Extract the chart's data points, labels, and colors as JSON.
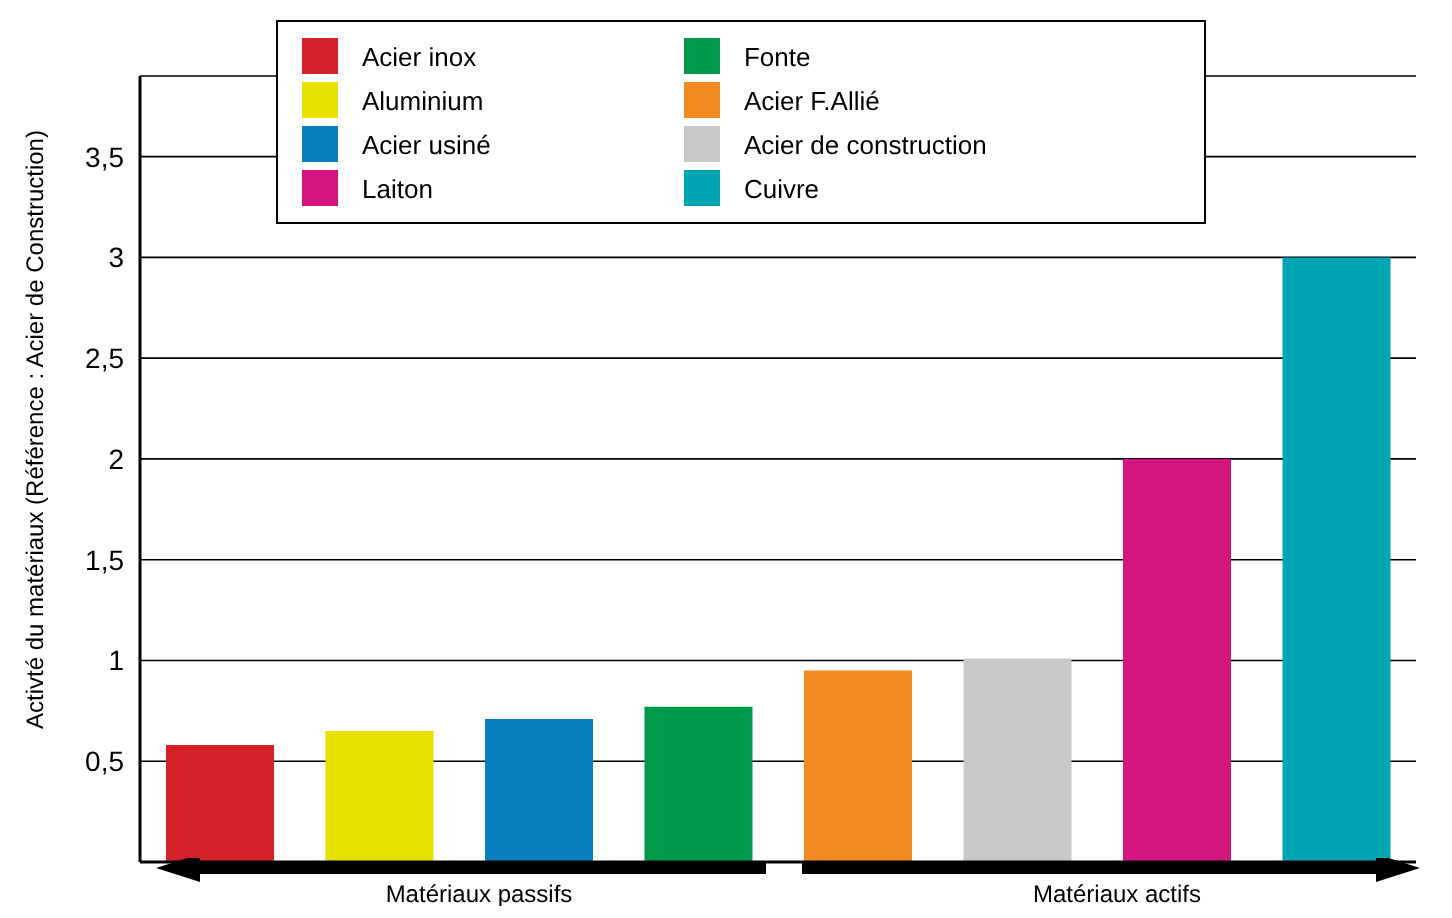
{
  "chart_data": {
    "type": "bar",
    "ylabel": "Activté du matériaux (Référence : Acier de Construction)",
    "categories": [
      null,
      null,
      null,
      null,
      null,
      null,
      null,
      null
    ],
    "series": [
      {
        "name": "Acier inox",
        "color": "#d42027",
        "values": [
          0.58,
          null,
          null,
          null,
          null,
          null,
          null,
          null
        ]
      },
      {
        "name": "Aluminium",
        "color": "#e8e000",
        "values": [
          null,
          0.65,
          null,
          null,
          null,
          null,
          null,
          null
        ]
      },
      {
        "name": "Acier usiné",
        "color": "#0a7fc0",
        "values": [
          null,
          null,
          0.71,
          null,
          null,
          null,
          null,
          null
        ]
      },
      {
        "name": "Laiton",
        "color": "#d4147f",
        "values": [
          null,
          null,
          null,
          null,
          null,
          null,
          2,
          null
        ]
      },
      {
        "name": "Fonte",
        "color": "#00984a",
        "values": [
          null,
          null,
          null,
          0.77,
          null,
          null,
          null,
          null
        ]
      },
      {
        "name": "Acier F.Allié",
        "color": "#f18a1f",
        "values": [
          null,
          null,
          null,
          null,
          0.95,
          null,
          null,
          null
        ]
      },
      {
        "name": "Acier de construction",
        "color": "#c8c8c8",
        "values": [
          null,
          null,
          null,
          null,
          null,
          1.01,
          null,
          null
        ]
      },
      {
        "name": "Cuivre",
        "color": "#00a5b4",
        "values": [
          null,
          null,
          null,
          null,
          null,
          null,
          null,
          3
        ]
      }
    ],
    "ylim": [
      0,
      3.9
    ],
    "yticks": [
      {
        "value": 0.5,
        "label": "0,5"
      },
      {
        "value": 1,
        "label": "1"
      },
      {
        "value": 1.5,
        "label": "1,5"
      },
      {
        "value": 2,
        "label": "2"
      },
      {
        "value": 2.5,
        "label": "2,5"
      },
      {
        "value": 3,
        "label": "3"
      },
      {
        "value": 3.5,
        "label": "3,5"
      }
    ],
    "grid": "y",
    "legend": "top",
    "annotations": [
      "Matériaux passifs",
      "Matériaux actifs"
    ]
  }
}
